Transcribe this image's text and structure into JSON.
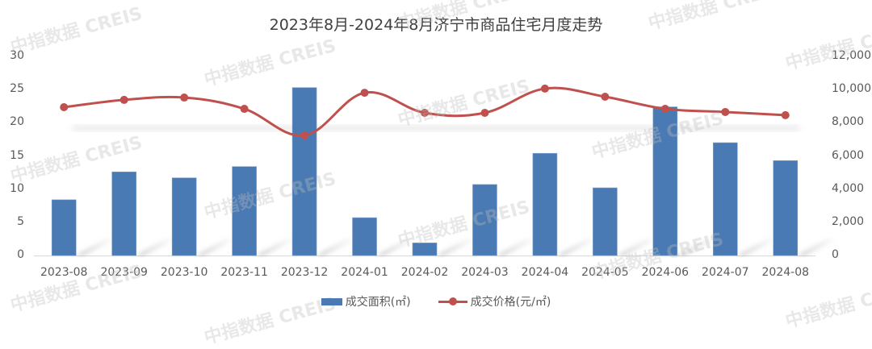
{
  "title": "2023年8月-2024年8月济宁市商品住宅月度走势",
  "watermark_text": "中指数据 CREIS",
  "colors": {
    "bar": "#4a7ab3",
    "line": "#c0504d",
    "axis_text": "#595959",
    "title": "#404040"
  },
  "legend": [
    {
      "label": "成交面积(㎡)",
      "type": "bar"
    },
    {
      "label": "成交价格(元/㎡)",
      "type": "line"
    }
  ],
  "chart_data": {
    "type": "bar+line",
    "title": "2023年8月-2024年8月济宁市商品住宅月度走势",
    "categories": [
      "2023-08",
      "2023-09",
      "2023-10",
      "2023-11",
      "2023-12",
      "2024-01",
      "2024-02",
      "2024-03",
      "2024-04",
      "2024-05",
      "2024-06",
      "2024-07",
      "2024-08"
    ],
    "series": [
      {
        "name": "成交面积(㎡)",
        "type": "bar",
        "axis": "left",
        "values": [
          8.4,
          12.6,
          11.7,
          13.4,
          25.3,
          5.7,
          1.9,
          10.7,
          15.4,
          10.2,
          22.4,
          17.0,
          14.3
        ]
      },
      {
        "name": "成交价格(元/㎡)",
        "type": "line",
        "axis": "right",
        "values": [
          8940,
          9380,
          9520,
          8840,
          7240,
          9810,
          8600,
          8600,
          10060,
          9570,
          8840,
          8650,
          8460
        ]
      }
    ],
    "y_left": {
      "ylim": [
        0,
        30
      ],
      "ticks": [
        "0",
        "5",
        "10",
        "15",
        "20",
        "25",
        "30"
      ]
    },
    "y_right": {
      "ylim": [
        0,
        12000
      ],
      "ticks": [
        "0",
        "2,000",
        "4,000",
        "6,000",
        "8,000",
        "10,000",
        "12,000"
      ]
    },
    "xlabel": "",
    "ylabel": "",
    "grid": false,
    "legend_position": "bottom"
  }
}
